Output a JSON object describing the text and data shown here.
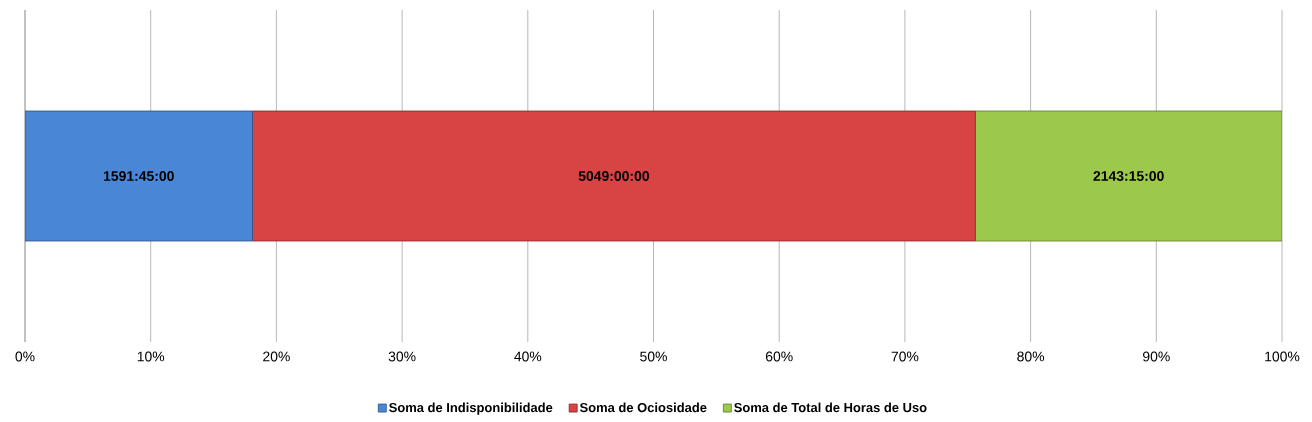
{
  "chart_data": {
    "type": "bar",
    "orientation": "horizontal",
    "stacked": true,
    "categories": [
      null
    ],
    "series": [
      {
        "name": "Soma de Indisponibilidade",
        "color": "#4a86d6",
        "values": [
          18.1
        ],
        "value_labels": [
          "1591:45:00"
        ]
      },
      {
        "name": "Soma de Ociosidade",
        "color": "#d84444",
        "values": [
          57.5
        ],
        "value_labels": [
          "5049:00:00"
        ]
      },
      {
        "name": "Soma de Total de Horas de Uso",
        "color": "#9cc84c",
        "values": [
          24.4
        ],
        "value_labels": [
          "2143:15:00"
        ]
      }
    ],
    "xlim": [
      0,
      100
    ],
    "xticks": [
      {
        "value": 0,
        "label": "0%"
      },
      {
        "value": 10,
        "label": "10%"
      },
      {
        "value": 20,
        "label": "20%"
      },
      {
        "value": 30,
        "label": "30%"
      },
      {
        "value": 40,
        "label": "40%"
      },
      {
        "value": 50,
        "label": "50%"
      },
      {
        "value": 60,
        "label": "60%"
      },
      {
        "value": 70,
        "label": "70%"
      },
      {
        "value": 80,
        "label": "80%"
      },
      {
        "value": 90,
        "label": "90%"
      },
      {
        "value": 100,
        "label": "100%"
      }
    ],
    "grid": "x",
    "legend": "bottom"
  }
}
